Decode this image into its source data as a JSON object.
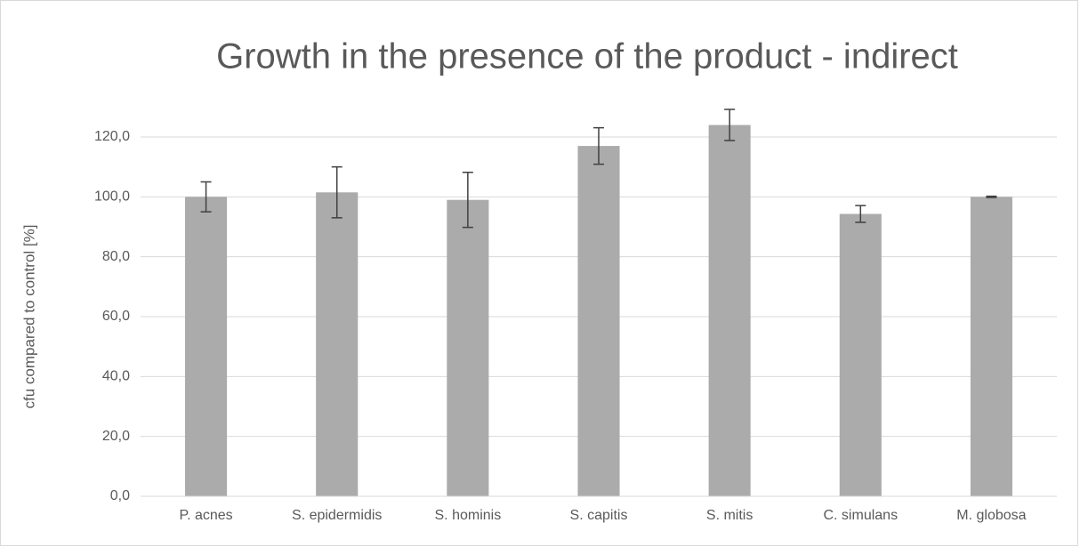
{
  "chart_data": {
    "type": "bar",
    "title": "Growth in the presence of the product - indirect",
    "y_label": "cfu compared to control [%]",
    "categories": [
      "P. acnes",
      "S. epidermidis",
      "S. hominis",
      "S. capitis",
      "S. mitis",
      "C. simulans",
      "M. globosa"
    ],
    "values": [
      100,
      101.5,
      99,
      117,
      124,
      94.3,
      100
    ],
    "errors": [
      5,
      8.5,
      9.2,
      6.1,
      5.2,
      2.8,
      0.2
    ],
    "color": "#ababab",
    "error_color": "#404040",
    "ylim": [
      0,
      120
    ],
    "yticks": [
      {
        "value": 0,
        "label": "0,0"
      },
      {
        "value": 20,
        "label": "20,0"
      },
      {
        "value": 40,
        "label": "40,0"
      },
      {
        "value": 60,
        "label": "60,0"
      },
      {
        "value": 80,
        "label": "80,0"
      },
      {
        "value": 100,
        "label": "100,0"
      },
      {
        "value": 120,
        "label": "120,0"
      }
    ],
    "grid": true
  }
}
